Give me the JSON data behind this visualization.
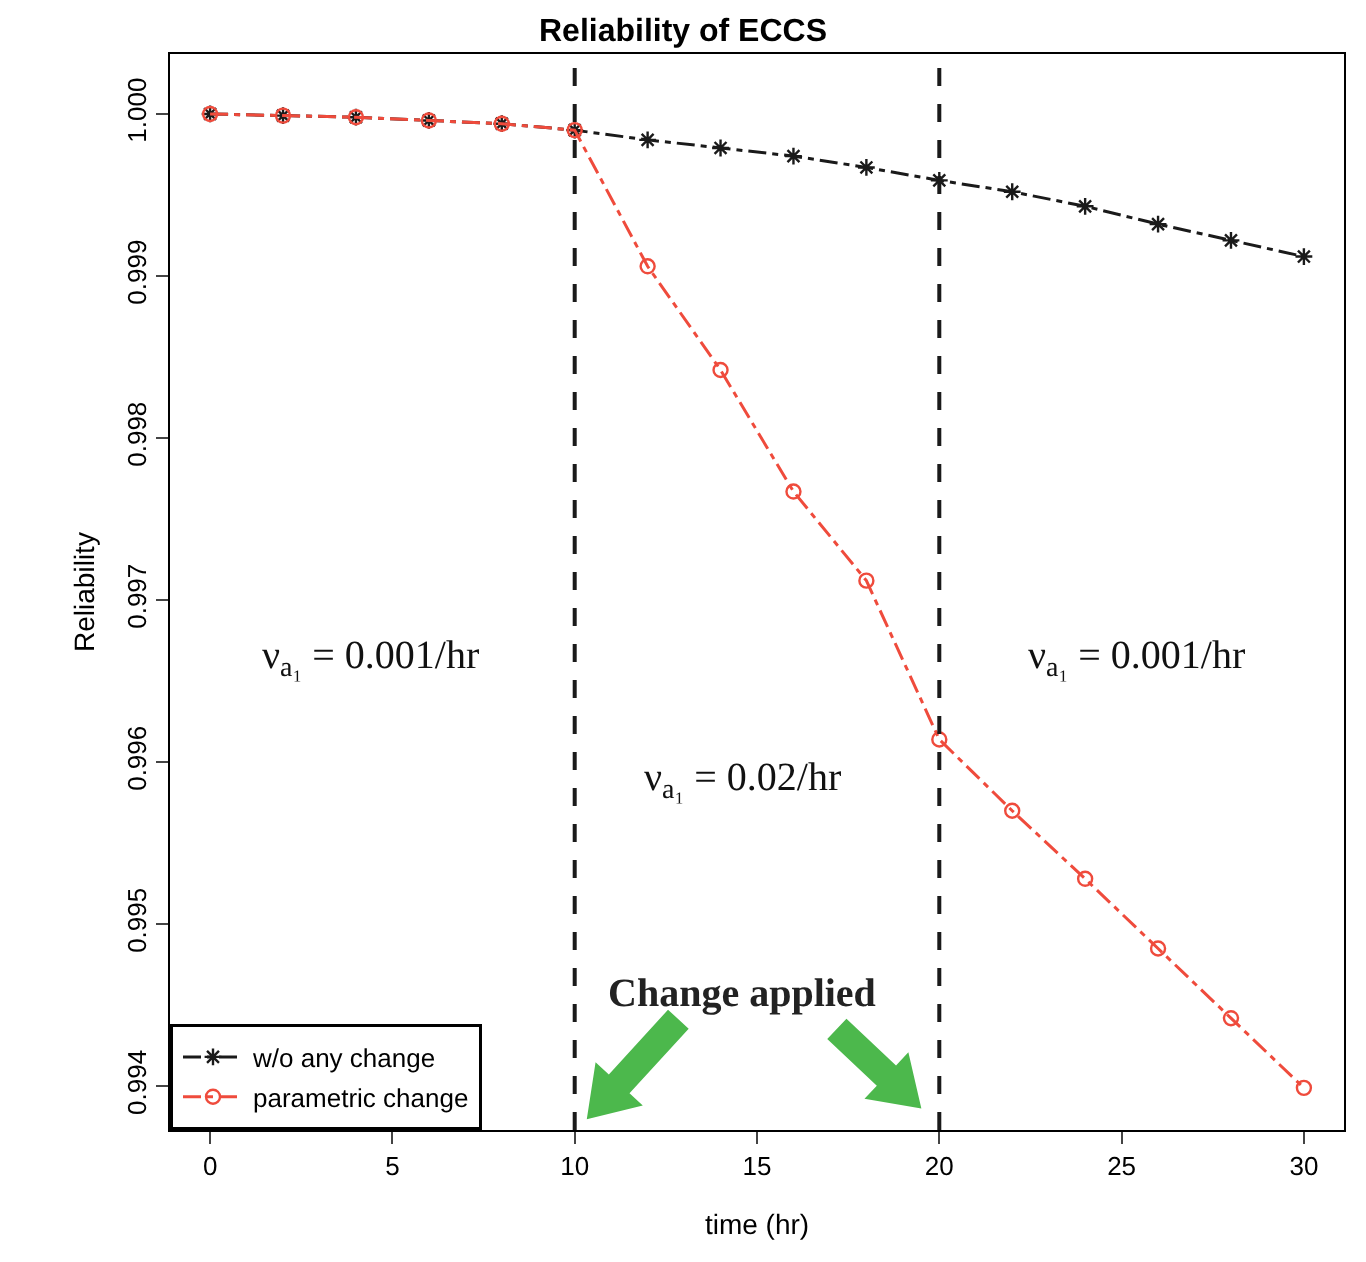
{
  "chart_data": {
    "type": "line",
    "title": "Reliability of ECCS",
    "xlabel": "time (hr)",
    "ylabel": "Reliability",
    "x": [
      0,
      2,
      4,
      6,
      8,
      10,
      12,
      14,
      16,
      18,
      20,
      22,
      24,
      26,
      28,
      30
    ],
    "series": [
      {
        "name": "w/o any change",
        "color": "#1a1a1a",
        "marker": "cross",
        "line_style": "dashdot",
        "values": [
          1.0,
          0.99999,
          0.99998,
          0.99996,
          0.99994,
          0.9999,
          0.99984,
          0.99979,
          0.99974,
          0.99967,
          0.99959,
          0.99952,
          0.99943,
          0.99932,
          0.99922,
          0.99912
        ]
      },
      {
        "name": "parametric change",
        "color": "#ef4b3c",
        "marker": "circle",
        "line_style": "dashdot",
        "values": [
          1.0,
          0.99999,
          0.99998,
          0.99996,
          0.99994,
          0.9999,
          0.99906,
          0.99842,
          0.99767,
          0.99712,
          0.99614,
          0.9957,
          0.99528,
          0.99485,
          0.99442,
          0.99399
        ]
      }
    ],
    "xlim": [
      -1.1,
      31.1
    ],
    "xticks": [
      0,
      5,
      10,
      15,
      20,
      25,
      30
    ],
    "ylim": [
      0.99373,
      1.00037
    ],
    "yticks": [
      0.994,
      0.995,
      0.996,
      0.997,
      0.998,
      0.999,
      {
        "value": 1.0,
        "label": "1.000"
      }
    ],
    "ref_lines": [
      {
        "axis": "x",
        "value": 10,
        "color": "#1a1a1a",
        "line_style": "dashed"
      },
      {
        "axis": "x",
        "value": 20,
        "color": "#1a1a1a",
        "line_style": "dashed"
      }
    ],
    "annotations": [
      "ν$_{a₁}$ = 0.001/hr",
      "ν$_{a₁}$ = 0.02/hr",
      "ν$_{a₁}$ = 0.001/hr",
      "Change applied"
    ],
    "grid": false,
    "legend": "bottom left"
  }
}
